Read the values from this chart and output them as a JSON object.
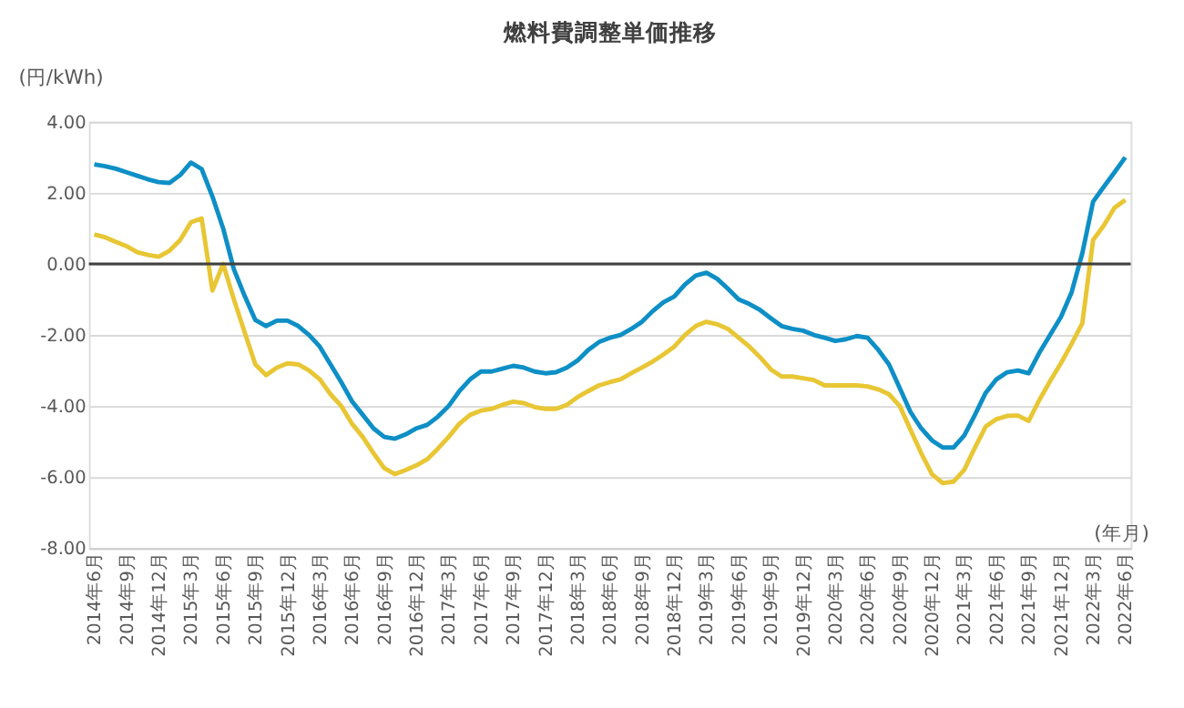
{
  "chart_data": {
    "type": "line",
    "title": "燃料費調整単価推移",
    "ylabel": "(円/kWh)",
    "xlabel": "(年月)",
    "categories": [
      "2014年6月",
      null,
      null,
      "2014年9月",
      null,
      null,
      "2014年12月",
      null,
      null,
      "2015年3月",
      null,
      null,
      "2015年6月",
      null,
      null,
      "2015年9月",
      null,
      null,
      "2015年12月",
      null,
      null,
      "2016年3月",
      null,
      null,
      "2016年6月",
      null,
      null,
      "2016年9月",
      null,
      null,
      "2016年12月",
      null,
      null,
      "2017年3月",
      null,
      null,
      "2017年6月",
      null,
      null,
      "2017年9月",
      null,
      null,
      "2017年12月",
      null,
      null,
      "2018年3月",
      null,
      null,
      "2018年6月",
      null,
      null,
      "2018年9月",
      null,
      null,
      "2018年12月",
      null,
      null,
      "2019年3月",
      null,
      null,
      "2019年6月",
      null,
      null,
      "2019年9月",
      null,
      null,
      "2019年12月",
      null,
      null,
      "2020年3月",
      null,
      null,
      "2020年6月",
      null,
      null,
      "2020年9月",
      null,
      null,
      "2020年12月",
      null,
      null,
      "2021年3月",
      null,
      null,
      "2021年6月",
      null,
      null,
      "2021年9月",
      null,
      null,
      "2021年12月",
      null,
      null,
      "2022年3月",
      null,
      null,
      "2022年6月"
    ],
    "series": [
      {
        "color": "#0e8fc6",
        "values": [
          2.8,
          2.75,
          2.68,
          2.58,
          2.48,
          2.38,
          2.3,
          2.28,
          2.5,
          2.85,
          2.67,
          1.9,
          1.0,
          -0.15,
          -0.9,
          -1.58,
          -1.75,
          -1.6,
          -1.6,
          -1.75,
          -2.0,
          -2.33,
          -2.83,
          -3.33,
          -3.87,
          -4.25,
          -4.63,
          -4.87,
          -4.92,
          -4.8,
          -4.63,
          -4.53,
          -4.3,
          -4.0,
          -3.58,
          -3.25,
          -3.03,
          -3.03,
          -2.95,
          -2.87,
          -2.92,
          -3.03,
          -3.08,
          -3.05,
          -2.92,
          -2.72,
          -2.42,
          -2.2,
          -2.08,
          -2.0,
          -1.83,
          -1.63,
          -1.33,
          -1.08,
          -0.92,
          -0.58,
          -0.33,
          -0.25,
          -0.42,
          -0.7,
          -1.0,
          -1.13,
          -1.3,
          -1.53,
          -1.75,
          -1.83,
          -1.88,
          -2.0,
          -2.08,
          -2.17,
          -2.12,
          -2.03,
          -2.08,
          -2.42,
          -2.83,
          -3.5,
          -4.17,
          -4.63,
          -4.97,
          -5.17,
          -5.17,
          -4.83,
          -4.25,
          -3.63,
          -3.25,
          -3.05,
          -3.0,
          -3.08,
          -2.5,
          -2.0,
          -1.5,
          -0.8,
          0.3,
          1.75,
          2.17,
          2.58,
          3.0
        ]
      },
      {
        "color": "#e8c634",
        "values": [
          0.83,
          0.75,
          0.62,
          0.5,
          0.33,
          0.25,
          0.2,
          0.37,
          0.67,
          1.17,
          1.28,
          -0.75,
          0.0,
          -1.0,
          -1.92,
          -2.83,
          -3.13,
          -2.92,
          -2.8,
          -2.83,
          -3.0,
          -3.25,
          -3.67,
          -4.0,
          -4.5,
          -4.87,
          -5.33,
          -5.75,
          -5.92,
          -5.8,
          -5.67,
          -5.5,
          -5.2,
          -4.87,
          -4.5,
          -4.25,
          -4.13,
          -4.08,
          -3.97,
          -3.88,
          -3.92,
          -4.03,
          -4.08,
          -4.08,
          -3.97,
          -3.75,
          -3.58,
          -3.42,
          -3.33,
          -3.25,
          -3.08,
          -2.92,
          -2.75,
          -2.55,
          -2.33,
          -2.0,
          -1.75,
          -1.63,
          -1.7,
          -1.83,
          -2.08,
          -2.33,
          -2.63,
          -2.97,
          -3.17,
          -3.17,
          -3.22,
          -3.27,
          -3.42,
          -3.42,
          -3.42,
          -3.42,
          -3.45,
          -3.53,
          -3.67,
          -4.0,
          -4.67,
          -5.33,
          -5.92,
          -6.17,
          -6.13,
          -5.8,
          -5.17,
          -4.58,
          -4.37,
          -4.28,
          -4.27,
          -4.42,
          -3.83,
          -3.3,
          -2.8,
          -2.25,
          -1.67,
          0.67,
          1.08,
          1.58,
          1.8
        ]
      }
    ],
    "ylim": [
      -8,
      4
    ],
    "yticks": [
      {
        "value": 4,
        "label": "4.00"
      },
      {
        "value": 2,
        "label": "2.00"
      },
      {
        "value": 0,
        "label": "0.00"
      },
      {
        "value": -2,
        "label": "-2.00"
      },
      {
        "value": -4,
        "label": "-4.00"
      },
      {
        "value": -6,
        "label": "-6.00"
      },
      {
        "value": -8,
        "label": "-8.00"
      }
    ],
    "ref_lines": [
      {
        "axis": "y",
        "value": 0,
        "color": "#404040",
        "line_style": "solid"
      }
    ],
    "grid": "y",
    "legend": false,
    "marker": "none",
    "line_style": "solid"
  }
}
